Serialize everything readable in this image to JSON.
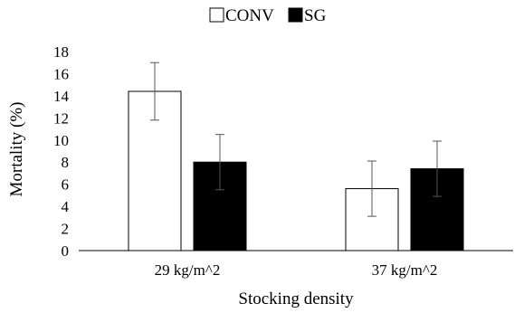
{
  "chart_data": {
    "type": "bar",
    "title": "",
    "xlabel": "Stocking density",
    "ylabel": "Mortality (%)",
    "categories": [
      "29 kg/m^2",
      "37 kg/m^2"
    ],
    "ylim": [
      0,
      18
    ],
    "yticks": [
      0,
      2,
      4,
      6,
      8,
      10,
      12,
      14,
      16,
      18
    ],
    "grid": false,
    "legend_position": "top-center",
    "series": [
      {
        "name": "CONV",
        "values": [
          14.4,
          5.6
        ],
        "errors": [
          2.6,
          2.5
        ],
        "color": "#ffffff"
      },
      {
        "name": "SG",
        "values": [
          8.0,
          7.4
        ],
        "errors": [
          2.5,
          2.5
        ],
        "color": "#000000"
      }
    ]
  }
}
